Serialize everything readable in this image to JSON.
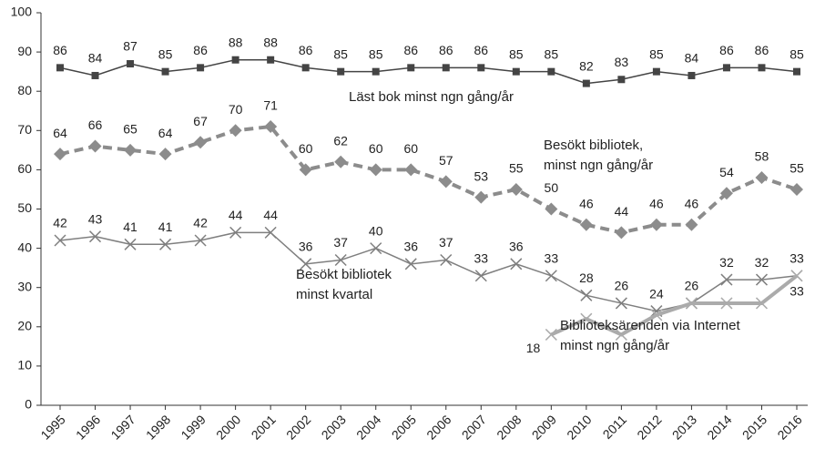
{
  "chart_data": {
    "type": "line",
    "x": [
      "1995",
      "1996",
      "1997",
      "1998",
      "1999",
      "2000",
      "2001",
      "2002",
      "2003",
      "2004",
      "2005",
      "2006",
      "2007",
      "2008",
      "2009",
      "2010",
      "2011",
      "2012",
      "2013",
      "2014",
      "2015",
      "2016"
    ],
    "series": [
      {
        "name": "Läst bok minst ngn gång/år",
        "color": "#444444",
        "marker": "square",
        "dash": false,
        "width": 1.5,
        "values": [
          86,
          84,
          87,
          85,
          86,
          88,
          88,
          86,
          85,
          85,
          86,
          86,
          86,
          85,
          85,
          82,
          83,
          85,
          84,
          86,
          86,
          85
        ]
      },
      {
        "name": "Besökt bibliotek, minst ngn gång/år",
        "color": "#8c8c8c",
        "marker": "diamond",
        "dash": true,
        "width": 4,
        "values": [
          64,
          66,
          65,
          64,
          67,
          70,
          71,
          60,
          62,
          60,
          60,
          57,
          53,
          55,
          50,
          46,
          44,
          46,
          46,
          54,
          58,
          55
        ]
      },
      {
        "name": "Besökt bibliotek minst kvartal",
        "color": "#7f7f7f",
        "marker": "x",
        "dash": false,
        "width": 1.5,
        "values": [
          42,
          43,
          41,
          41,
          42,
          44,
          44,
          36,
          37,
          40,
          36,
          37,
          33,
          36,
          33,
          28,
          26,
          24,
          26,
          32,
          32,
          33
        ]
      },
      {
        "name": "Biblioteksärenden via Internet minst ngn gång/år",
        "color": "#ababab",
        "marker": "x",
        "dash": false,
        "width": 4,
        "values": [
          null,
          null,
          null,
          null,
          null,
          null,
          null,
          null,
          null,
          null,
          null,
          null,
          null,
          null,
          18,
          22,
          18,
          23,
          26,
          26,
          26,
          33
        ],
        "value_labels": [
          null,
          null,
          null,
          null,
          null,
          null,
          null,
          null,
          null,
          null,
          null,
          null,
          null,
          null,
          "18",
          null,
          null,
          null,
          null,
          null,
          null,
          "33"
        ]
      }
    ],
    "annotations": [
      [
        "Läst bok minst ngn gång/år"
      ],
      [
        "Besökt bibliotek,",
        "minst ngn gång/år"
      ],
      [
        "Besökt bibliotek",
        "minst kvartal"
      ],
      [
        "Biblioteksärenden via Internet",
        "minst ngn gång/år"
      ]
    ],
    "ylim": [
      0,
      100
    ],
    "yticks": [
      0,
      10,
      20,
      30,
      40,
      50,
      60,
      70,
      80,
      90,
      100
    ],
    "grid": false,
    "legend": false
  }
}
